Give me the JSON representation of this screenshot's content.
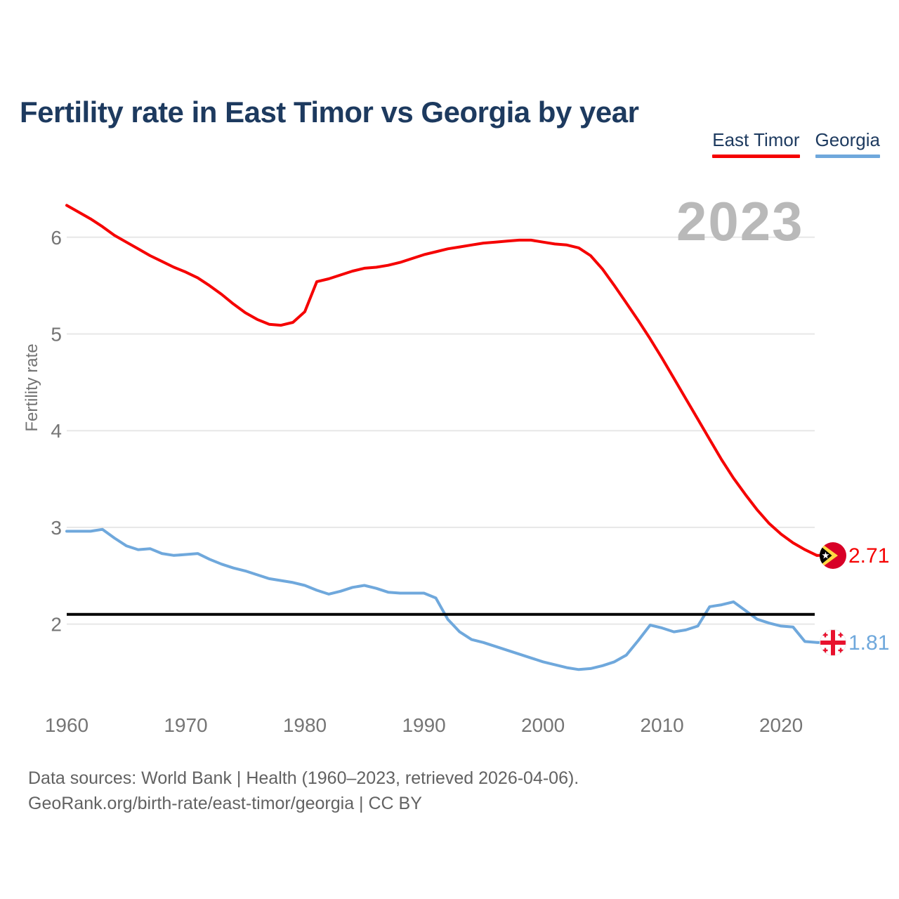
{
  "page": {
    "title": "Fertility rate in East Timor vs Georgia by year",
    "watermark_year": "2023"
  },
  "legend": {
    "items": [
      {
        "label": "East Timor",
        "color": "#f50000"
      },
      {
        "label": "Georgia",
        "color": "#6fa8dc"
      }
    ]
  },
  "footer": {
    "line1": "Data sources: World Bank | Health (1960–2023, retrieved 2026-04-06).",
    "line2": "GeoRank.org/birth-rate/east-timor/georgia | CC BY"
  },
  "chart_data": {
    "type": "line",
    "title": "Fertility rate in East Timor vs Georgia by year",
    "xlabel": "",
    "ylabel": "Fertility rate",
    "xlim": [
      1960,
      2023
    ],
    "ylim": [
      2,
      6.45
    ],
    "x_ticks": [
      1960,
      1970,
      1980,
      1990,
      2000,
      2010,
      2020
    ],
    "y_ticks": [
      2,
      3,
      4,
      5,
      6
    ],
    "grid": "horizontal",
    "legend_position": "top-right",
    "watermark": "2023",
    "reference_line": {
      "value": 2.1,
      "color": "#000000"
    },
    "x": [
      1960,
      1961,
      1962,
      1963,
      1964,
      1965,
      1966,
      1967,
      1968,
      1969,
      1970,
      1971,
      1972,
      1973,
      1974,
      1975,
      1976,
      1977,
      1978,
      1979,
      1980,
      1981,
      1982,
      1983,
      1984,
      1985,
      1986,
      1987,
      1988,
      1989,
      1990,
      1991,
      1992,
      1993,
      1994,
      1995,
      1996,
      1997,
      1998,
      1999,
      2000,
      2001,
      2002,
      2003,
      2004,
      2005,
      2006,
      2007,
      2008,
      2009,
      2010,
      2011,
      2012,
      2013,
      2014,
      2015,
      2016,
      2017,
      2018,
      2019,
      2020,
      2021,
      2022,
      2023
    ],
    "series": [
      {
        "name": "East Timor",
        "color": "#f50000",
        "flag_icon": "east-timor-flag-icon",
        "end_label": "2.71",
        "end_value": 2.71,
        "values": [
          6.33,
          6.26,
          6.19,
          6.11,
          6.02,
          5.95,
          5.88,
          5.81,
          5.75,
          5.69,
          5.64,
          5.58,
          5.5,
          5.41,
          5.31,
          5.22,
          5.15,
          5.1,
          5.09,
          5.12,
          5.23,
          5.54,
          5.57,
          5.61,
          5.65,
          5.68,
          5.69,
          5.71,
          5.74,
          5.78,
          5.82,
          5.85,
          5.88,
          5.9,
          5.92,
          5.94,
          5.95,
          5.96,
          5.97,
          5.97,
          5.95,
          5.93,
          5.92,
          5.89,
          5.81,
          5.67,
          5.5,
          5.32,
          5.14,
          4.95,
          4.75,
          4.54,
          4.33,
          4.12,
          3.91,
          3.7,
          3.51,
          3.34,
          3.18,
          3.04,
          2.93,
          2.84,
          2.77,
          2.71
        ]
      },
      {
        "name": "Georgia",
        "color": "#6fa8dc",
        "flag_icon": "georgia-flag-icon",
        "end_label": "1.81",
        "end_value": 1.81,
        "values": [
          2.96,
          2.96,
          2.96,
          2.98,
          2.89,
          2.81,
          2.77,
          2.78,
          2.73,
          2.71,
          2.72,
          2.73,
          2.67,
          2.62,
          2.58,
          2.55,
          2.51,
          2.47,
          2.45,
          2.43,
          2.4,
          2.35,
          2.31,
          2.34,
          2.38,
          2.4,
          2.37,
          2.33,
          2.32,
          2.32,
          2.32,
          2.27,
          2.05,
          1.92,
          1.84,
          1.81,
          1.77,
          1.73,
          1.69,
          1.65,
          1.61,
          1.58,
          1.55,
          1.53,
          1.54,
          1.57,
          1.61,
          1.68,
          1.83,
          1.99,
          1.96,
          1.92,
          1.94,
          1.98,
          2.18,
          2.2,
          2.23,
          2.14,
          2.05,
          2.01,
          1.98,
          1.97,
          1.82,
          1.81
        ]
      }
    ]
  }
}
